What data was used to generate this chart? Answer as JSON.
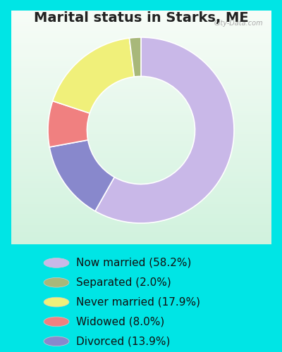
{
  "title": "Marital status in Starks, ME",
  "slices": [
    58.2,
    13.9,
    8.0,
    17.9,
    2.0
  ],
  "labels": [
    "Now married (58.2%)",
    "Separated (2.0%)",
    "Never married (17.9%)",
    "Widowed (8.0%)",
    "Divorced (13.9%)"
  ],
  "legend_colors": [
    "#c9b8e8",
    "#a8b87a",
    "#f0f07a",
    "#f08080",
    "#8888cc"
  ],
  "slice_colors": [
    "#c9b8e8",
    "#8888cc",
    "#f08080",
    "#f0f07a",
    "#a8b87a"
  ],
  "background_color": "#00e5e5",
  "chart_bg": "#e8f5ee",
  "title_fontsize": 14,
  "legend_fontsize": 11,
  "watermark": "City-Data.com",
  "start_angle": 90,
  "donut_width": 0.42
}
